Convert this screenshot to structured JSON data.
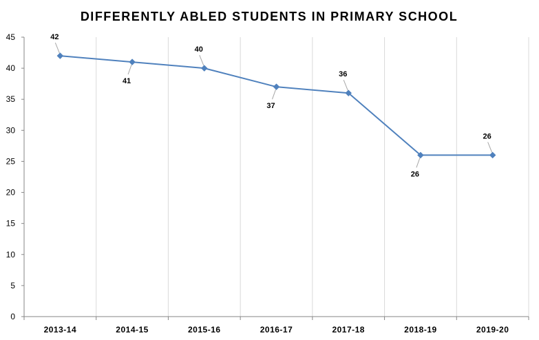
{
  "chart_data": {
    "type": "line",
    "title": "DIFFERENTLY ABLED STUDENTS IN PRIMARY SCHOOL",
    "categories": [
      "2013-14",
      "2014-15",
      "2015-16",
      "2016-17",
      "2017-18",
      "2018-19",
      "2019-20"
    ],
    "series": [
      {
        "values": [
          42,
          41,
          40,
          37,
          36,
          26,
          26
        ]
      }
    ],
    "data_labels": [
      "42",
      "41",
      "40",
      "37",
      "36",
      "26",
      "26"
    ],
    "label_side": [
      "above",
      "below",
      "above",
      "below",
      "above",
      "below",
      "above"
    ],
    "ylim": [
      0,
      45
    ],
    "yticks": [
      "0",
      "5",
      "10",
      "15",
      "20",
      "25",
      "30",
      "35",
      "40",
      "45"
    ],
    "grid": "vertical",
    "line_color": "#4F81BD",
    "marker": "diamond",
    "xlabel": "",
    "ylabel": ""
  }
}
